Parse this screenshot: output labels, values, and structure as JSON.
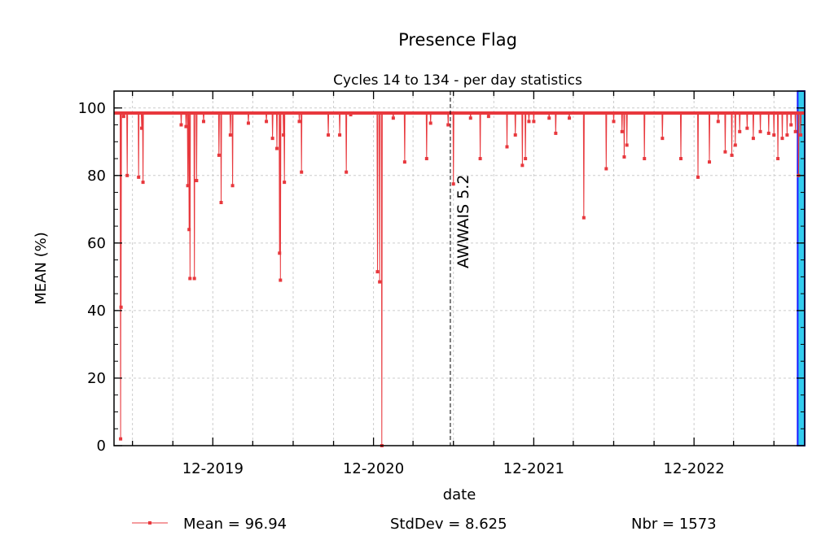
{
  "chart_data": {
    "type": "line",
    "title": "Presence Flag",
    "subtitle": "Cycles 14 to 134 - per day statistics",
    "xlabel": "date",
    "ylabel": "MEAN (%)",
    "xlim": [
      "2019-04-20",
      "2023-08-10"
    ],
    "ylim": [
      0,
      105
    ],
    "yticks": [
      0,
      20,
      40,
      60,
      80,
      100
    ],
    "xticks": [
      {
        "date": "2019-12-01",
        "label": "12-2019"
      },
      {
        "date": "2020-12-01",
        "label": "12-2020"
      },
      {
        "date": "2021-12-01",
        "label": "12-2021"
      },
      {
        "date": "2022-12-01",
        "label": "12-2022"
      }
    ],
    "grid": true,
    "series": [
      {
        "name": "Mean",
        "color": "#e8383d",
        "baseline": 98.5,
        "dips": [
          [
            "2019-05-05",
            2
          ],
          [
            "2019-05-06",
            41
          ],
          [
            "2019-05-12",
            97.5
          ],
          [
            "2019-05-20",
            80
          ],
          [
            "2019-06-15",
            79.5
          ],
          [
            "2019-06-25",
            78
          ],
          [
            "2019-06-22",
            94
          ],
          [
            "2019-09-20",
            95
          ],
          [
            "2019-10-01",
            94.5
          ],
          [
            "2019-10-05",
            77
          ],
          [
            "2019-10-08",
            64
          ],
          [
            "2019-10-10",
            49.5
          ],
          [
            "2019-10-20",
            49.5
          ],
          [
            "2019-10-25",
            78.5
          ],
          [
            "2019-11-10",
            96
          ],
          [
            "2019-12-15",
            86
          ],
          [
            "2019-12-20",
            72
          ],
          [
            "2020-01-10",
            92
          ],
          [
            "2020-01-15",
            77
          ],
          [
            "2020-02-20",
            95.5
          ],
          [
            "2020-04-01",
            96
          ],
          [
            "2020-04-15",
            91
          ],
          [
            "2020-04-25",
            88
          ],
          [
            "2020-05-01",
            57
          ],
          [
            "2020-05-03",
            49
          ],
          [
            "2020-05-10",
            92
          ],
          [
            "2020-05-12",
            78
          ],
          [
            "2020-06-20",
            81
          ],
          [
            "2020-06-15",
            96
          ],
          [
            "2020-08-20",
            92
          ],
          [
            "2020-09-15",
            92
          ],
          [
            "2020-09-30",
            81
          ],
          [
            "2020-10-10",
            98
          ],
          [
            "2020-12-10",
            51.5
          ],
          [
            "2020-12-15",
            48.5
          ],
          [
            "2020-12-20",
            0
          ],
          [
            "2021-01-15",
            97
          ],
          [
            "2021-02-10",
            84
          ],
          [
            "2021-04-01",
            85
          ],
          [
            "2021-04-10",
            95.5
          ],
          [
            "2021-05-20",
            95
          ],
          [
            "2021-06-01",
            77.5
          ],
          [
            "2021-07-10",
            97
          ],
          [
            "2021-08-01",
            85
          ],
          [
            "2021-08-20",
            97.5
          ],
          [
            "2021-10-01",
            88.5
          ],
          [
            "2021-10-20",
            92
          ],
          [
            "2021-11-05",
            83
          ],
          [
            "2021-11-12",
            85
          ],
          [
            "2021-11-20",
            96
          ],
          [
            "2021-12-01",
            96
          ],
          [
            "2022-01-05",
            97
          ],
          [
            "2022-01-20",
            92.5
          ],
          [
            "2022-02-20",
            97
          ],
          [
            "2022-03-25",
            67.5
          ],
          [
            "2022-05-15",
            82
          ],
          [
            "2022-06-01",
            96
          ],
          [
            "2022-06-20",
            93
          ],
          [
            "2022-06-25",
            85.5
          ],
          [
            "2022-07-01",
            89
          ],
          [
            "2022-08-10",
            85
          ],
          [
            "2022-09-20",
            91
          ],
          [
            "2022-11-01",
            85
          ],
          [
            "2022-12-10",
            79.5
          ],
          [
            "2023-01-05",
            84
          ],
          [
            "2023-01-25",
            96
          ],
          [
            "2023-02-10",
            87
          ],
          [
            "2023-02-25",
            86
          ],
          [
            "2023-03-05",
            89
          ],
          [
            "2023-03-15",
            93
          ],
          [
            "2023-04-01",
            94
          ],
          [
            "2023-04-15",
            91
          ],
          [
            "2023-05-01",
            93
          ],
          [
            "2023-05-20",
            92.5
          ],
          [
            "2023-06-01",
            92
          ],
          [
            "2023-06-10",
            85
          ],
          [
            "2023-06-20",
            91
          ],
          [
            "2023-07-01",
            92
          ],
          [
            "2023-07-10",
            95
          ],
          [
            "2023-07-20",
            93
          ],
          [
            "2023-07-27",
            80
          ],
          [
            "2023-08-01",
            92
          ]
        ]
      }
    ],
    "annotations": [
      {
        "type": "vline",
        "date": "2021-05-25",
        "label": "AWWAIS 5.2",
        "style": "dashed"
      }
    ],
    "highlight_region": {
      "start": "2023-07-25",
      "end": "2023-08-10",
      "fill": "#33ccee",
      "edge": "#1a1aff"
    },
    "legend": {
      "position": "bottom",
      "mean_label": "Mean = 96.94",
      "stddev_label": "StdDev = 8.625",
      "nbr_label": "Nbr = 1573"
    }
  }
}
